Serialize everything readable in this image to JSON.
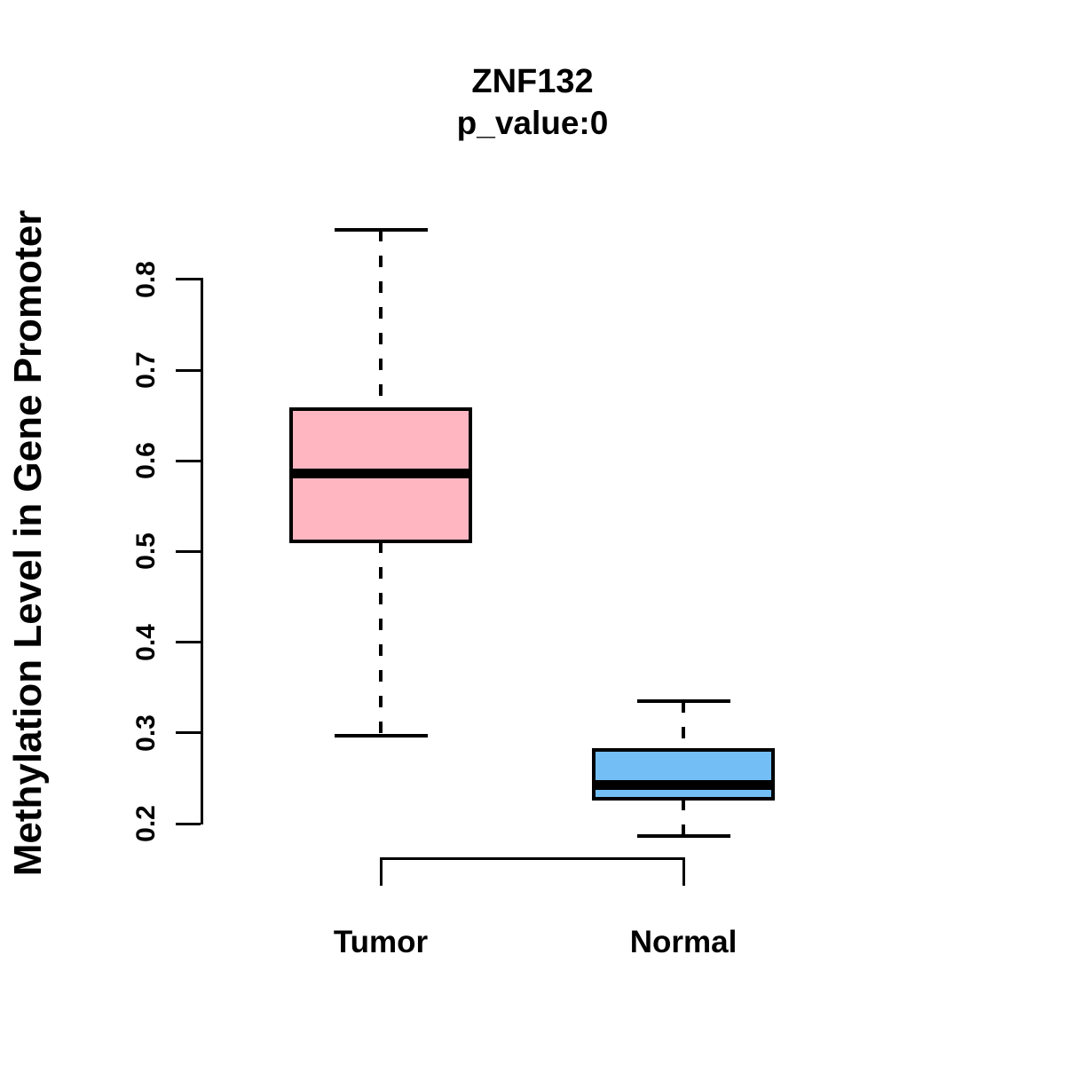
{
  "chart_data": {
    "type": "boxplot",
    "title": "ZNF132",
    "subtitle": "p_value:0",
    "ylabel": "Methylation Level in Gene Promoter",
    "xlabel": "",
    "yticks": [
      0.2,
      0.3,
      0.4,
      0.5,
      0.6,
      0.7,
      0.8
    ],
    "ytick_labels": [
      "0.2",
      "0.3",
      "0.4",
      "0.5",
      "0.6",
      "0.7",
      "0.8"
    ],
    "ylim": [
      0.186,
      0.856
    ],
    "grid": false,
    "legend": "none",
    "groups": [
      {
        "label": "Tumor",
        "fill_color": "#FFB6C1",
        "stats": {
          "upper_whisker": 0.855,
          "q3": 0.657,
          "median": 0.586,
          "q1": 0.511,
          "lower_whisker": 0.297
        }
      },
      {
        "label": "Normal",
        "fill_color": "#73BEF5",
        "stats": {
          "upper_whisker": 0.335,
          "q3": 0.281,
          "median": 0.243,
          "q1": 0.227,
          "lower_whisker": 0.186
        }
      }
    ],
    "colors": {
      "box_border": "#000000",
      "median": "#000000",
      "whisker": "#000000",
      "axis": "#000000",
      "background": "#FFFFFF"
    }
  }
}
